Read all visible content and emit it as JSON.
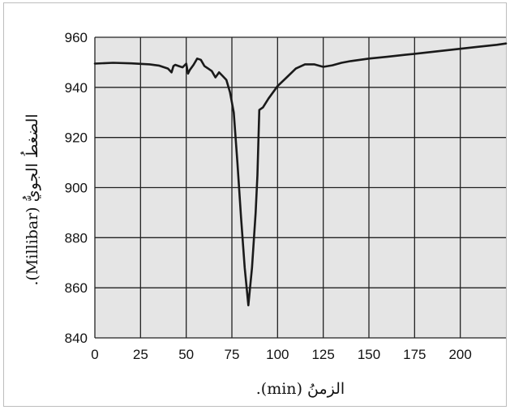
{
  "chart_data": {
    "type": "line",
    "title": "",
    "xlabel": "الزمنُ (min).",
    "ylabel": "الضغطُ الجويُّ (Millibar).",
    "xlim": [
      0,
      225
    ],
    "ylim": [
      840,
      960
    ],
    "x_ticks": [
      0,
      25,
      50,
      75,
      100,
      125,
      150,
      175,
      200
    ],
    "y_ticks": [
      840,
      860,
      880,
      900,
      920,
      940,
      960
    ],
    "grid": true,
    "legend": "none",
    "background_color": "#e5e5e5",
    "line_color": "#1a1a1a",
    "series": [
      {
        "x": [
          0,
          10,
          20,
          30,
          35,
          40,
          42,
          43,
          44,
          46,
          48,
          50,
          51,
          52,
          54,
          56,
          58,
          60,
          62,
          64,
          66,
          67,
          68,
          70,
          72,
          74,
          76,
          78,
          80,
          82,
          84,
          86,
          88,
          89,
          90,
          92,
          95,
          100,
          105,
          110,
          115,
          120,
          125,
          130,
          135,
          140,
          150,
          160,
          170,
          180,
          190,
          200,
          210,
          220,
          225
        ],
        "y": [
          949.5,
          949.8,
          949.6,
          949.2,
          948.7,
          947.5,
          946,
          948.5,
          949,
          948.5,
          948,
          949.5,
          945.5,
          947,
          949,
          951.5,
          951,
          948.5,
          947.5,
          946.5,
          944,
          945,
          946,
          944.5,
          943,
          938,
          930,
          910,
          888,
          868,
          853,
          868,
          890,
          905,
          931,
          932,
          935.5,
          940.5,
          944,
          947.5,
          949.2,
          949.2,
          948.2,
          948.8,
          949.8,
          950.5,
          951.5,
          952.2,
          953,
          953.8,
          954.6,
          955.4,
          956.2,
          957,
          957.5
        ]
      }
    ]
  }
}
